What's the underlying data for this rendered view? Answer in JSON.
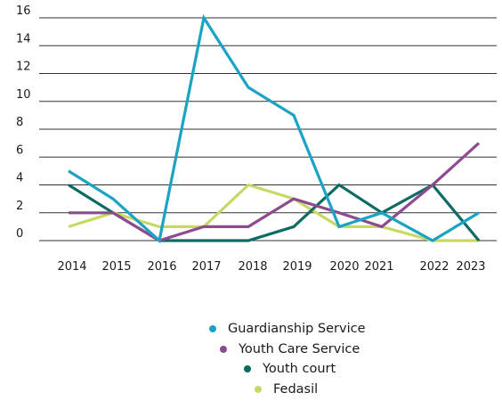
{
  "chart_data": {
    "type": "line",
    "categories": [
      "2014",
      "2015",
      "2016",
      "2017",
      "2018",
      "2019",
      "2020",
      "2021",
      "2022",
      "2023"
    ],
    "y_ticks": [
      "0",
      "2",
      "4",
      "6",
      "8",
      "10",
      "12",
      "14",
      "16"
    ],
    "ylim": [
      0,
      16
    ],
    "grid": true,
    "legend_position": "bottom",
    "series": [
      {
        "name": "Guardianship Service",
        "color": "#1aa3c4",
        "values": [
          5,
          3,
          0,
          16,
          11,
          9,
          1,
          2,
          0,
          2
        ]
      },
      {
        "name": "Youth Care Service",
        "color": "#8e4a8e",
        "values": [
          2,
          2,
          0,
          1,
          1,
          3,
          2,
          1,
          4,
          7
        ]
      },
      {
        "name": "Youth court",
        "color": "#0e6b63",
        "values": [
          4,
          2,
          0,
          0,
          0,
          1,
          4,
          2,
          4,
          0
        ]
      },
      {
        "name": "Fedasil",
        "color": "#c9d865",
        "values": [
          1,
          2,
          1,
          1,
          4,
          3,
          1,
          1,
          0,
          0
        ]
      }
    ]
  }
}
